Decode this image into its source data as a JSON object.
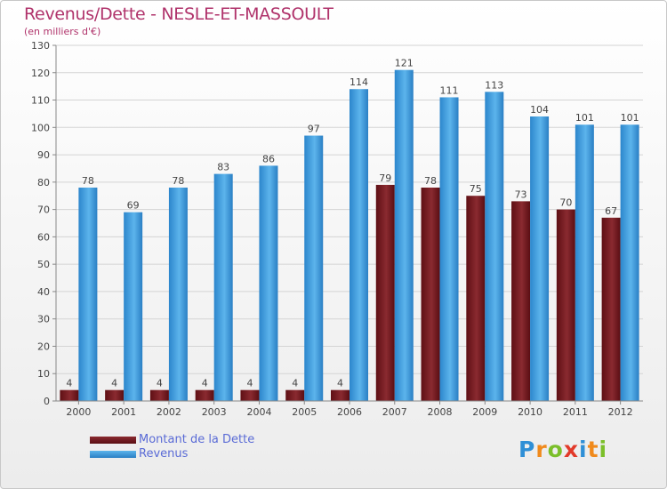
{
  "header": {
    "title": "Revenus/Dette - NESLE-ET-MASSOULT",
    "subtitle": "(en milliers d'€)"
  },
  "chart_data": {
    "type": "bar",
    "categories": [
      "2000",
      "2001",
      "2002",
      "2003",
      "2004",
      "2005",
      "2006",
      "2007",
      "2008",
      "2009",
      "2010",
      "2011",
      "2012"
    ],
    "series": [
      {
        "name": "Montant de la Dette",
        "values": [
          4,
          4,
          4,
          4,
          4,
          4,
          4,
          79,
          78,
          75,
          73,
          70,
          67
        ],
        "color": "#7a1e23"
      },
      {
        "name": "Revenus",
        "values": [
          78,
          69,
          78,
          83,
          86,
          97,
          114,
          121,
          111,
          113,
          104,
          101,
          101
        ],
        "color": "#3f9ee0"
      }
    ],
    "ylim": [
      0,
      130
    ],
    "yticks": [
      0,
      10,
      20,
      30,
      40,
      50,
      60,
      70,
      80,
      90,
      100,
      110,
      120,
      130
    ],
    "grid": true,
    "legend_position": "bottom-left",
    "data_labels": true
  },
  "legend": {
    "items": [
      {
        "label": "Montant de la Dette",
        "color": "#7a1e23"
      },
      {
        "label": "Revenus",
        "color": "#3f9ee0"
      }
    ]
  },
  "logo": {
    "text": "Proxiti",
    "letters": [
      {
        "ch": "P",
        "color": "#2f8fd6"
      },
      {
        "ch": "r",
        "color": "#f08a1c"
      },
      {
        "ch": "o",
        "color": "#7bbf2a"
      },
      {
        "ch": "x",
        "color": "#e23a2a"
      },
      {
        "ch": "i",
        "color": "#2f8fd6"
      },
      {
        "ch": "t",
        "color": "#f08a1c"
      },
      {
        "ch": "i",
        "color": "#7bbf2a"
      }
    ]
  }
}
